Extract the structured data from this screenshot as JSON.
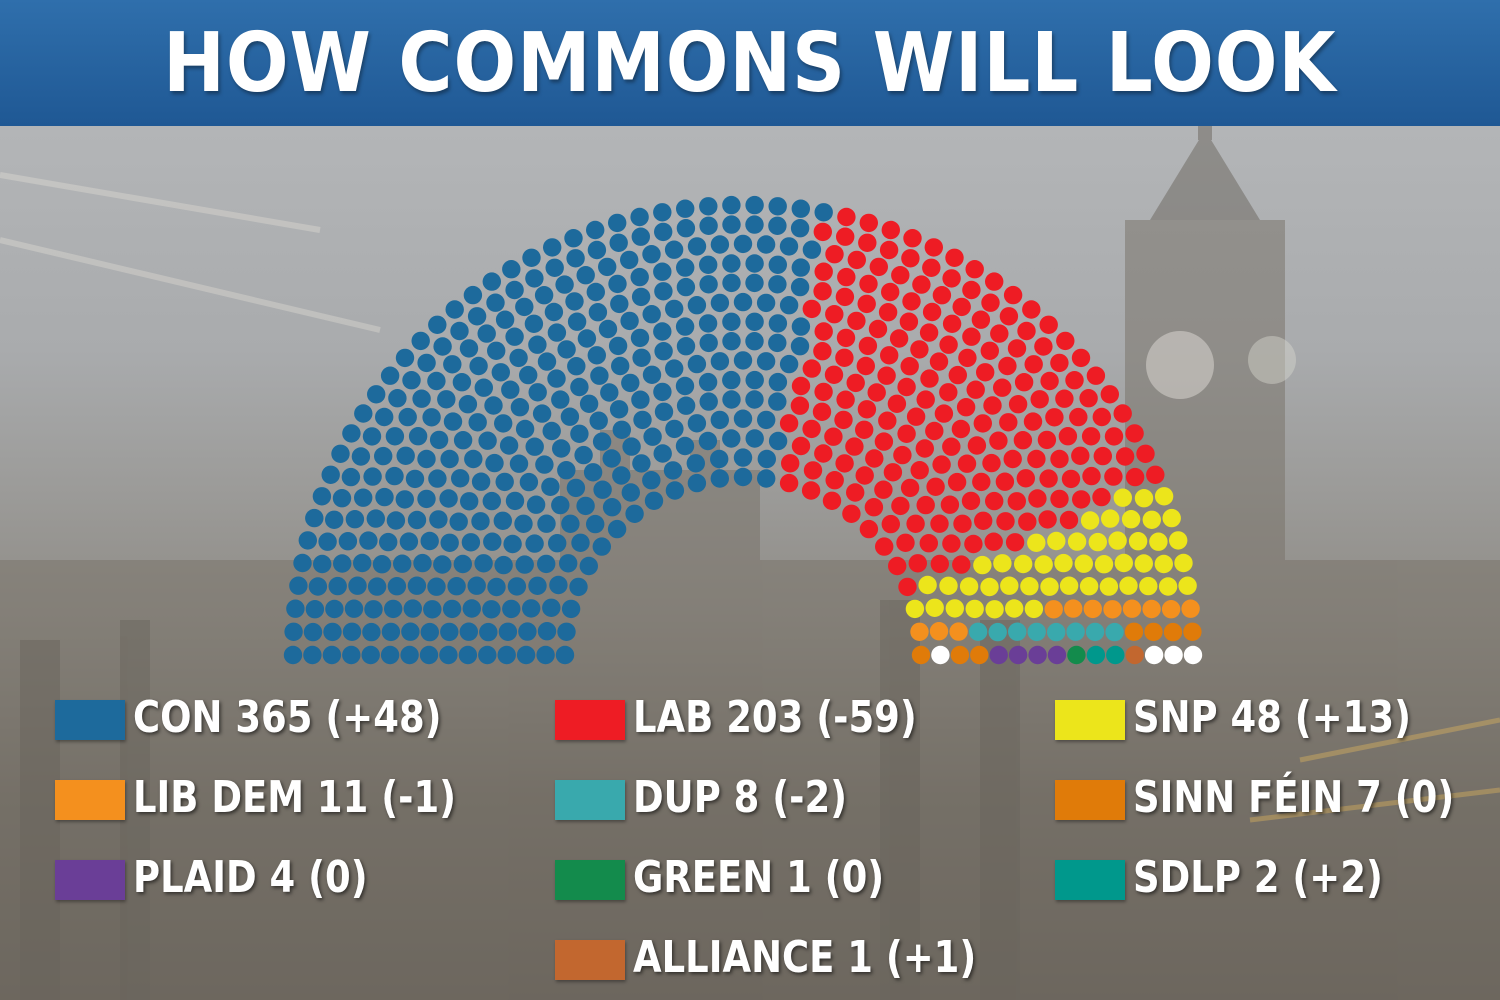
{
  "header": {
    "title": "HOW COMMONS WILL LOOK"
  },
  "chart_data": {
    "type": "parliament",
    "series": [
      {
        "name": "CON",
        "seats": 365,
        "change": "+48",
        "label": "CON 365 (+48)",
        "color": "#1d6a9c"
      },
      {
        "name": "LAB",
        "seats": 203,
        "change": "-59",
        "label": "LAB 203 (-59)",
        "color": "#ee1c24"
      },
      {
        "name": "SNP",
        "seats": 48,
        "change": "+13",
        "label": "SNP 48 (+13)",
        "color": "#ece51b"
      },
      {
        "name": "LIB DEM",
        "seats": 11,
        "change": "-1",
        "label": "LIB DEM 11 (-1)",
        "color": "#f4901e"
      },
      {
        "name": "DUP",
        "seats": 8,
        "change": "-2",
        "label": "DUP 8 (-2)",
        "color": "#39a9ad"
      },
      {
        "name": "SINN FÉIN",
        "seats": 7,
        "change": "0",
        "label": "SINN FÉIN 7 (0)",
        "color": "#e07b09"
      },
      {
        "name": "PLAID",
        "seats": 4,
        "change": "0",
        "label": "PLAID 4 (0)",
        "color": "#6a3e97"
      },
      {
        "name": "GREEN",
        "seats": 1,
        "change": "0",
        "label": "GREEN 1 (0)",
        "color": "#138b4c"
      },
      {
        "name": "SDLP",
        "seats": 2,
        "change": "+2",
        "label": "SDLP 2 (+2)",
        "color": "#00988c"
      },
      {
        "name": "ALLIANCE",
        "seats": 1,
        "change": "+1",
        "label": "ALLIANCE 1 (+1)",
        "color": "#c2672f"
      }
    ],
    "other_seats": {
      "seats": 4,
      "color": "#ffffff"
    }
  }
}
